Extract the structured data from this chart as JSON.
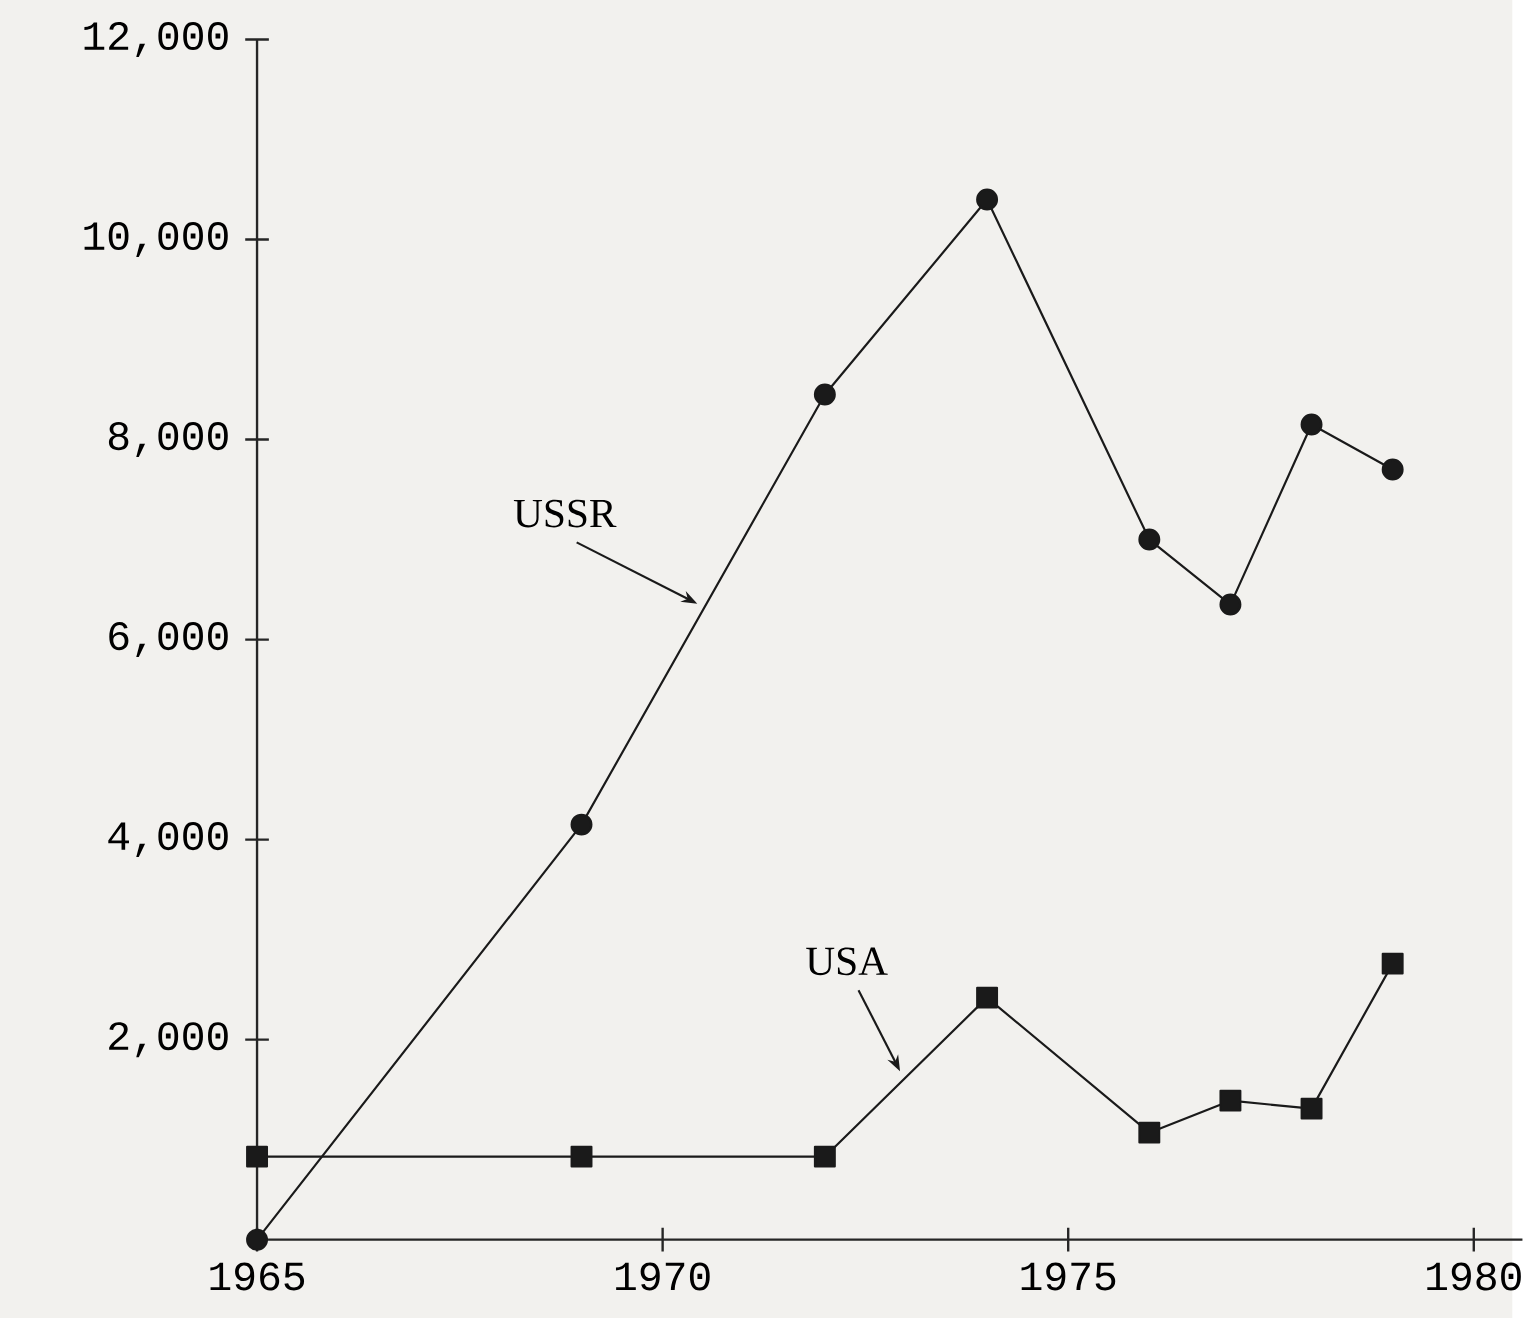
{
  "chart_data": {
    "type": "line",
    "x": [
      1965,
      1969,
      1972,
      1974,
      1976,
      1977,
      1978,
      1979
    ],
    "series": [
      {
        "name": "USSR",
        "color": "#1a1a1a",
        "marker": "circle",
        "values": [
          0,
          4150,
          8450,
          10400,
          7000,
          6350,
          8150,
          7700
        ]
      },
      {
        "name": "USA",
        "color": "#1a1a1a",
        "marker": "square",
        "values": [
          830,
          830,
          830,
          2420,
          1070,
          1390,
          1310,
          2760
        ]
      }
    ],
    "xlim": [
      1965,
      1980.6
    ],
    "xticks": [
      1965,
      1970,
      1975,
      1980
    ],
    "ylim": [
      0,
      12000
    ],
    "yticks": [
      {
        "value": 2000,
        "label": "2,000"
      },
      {
        "value": 4000,
        "label": "4,000"
      },
      {
        "value": 6000,
        "label": "6,000"
      },
      {
        "value": 8000,
        "label": "8,000"
      },
      {
        "value": 10000,
        "label": "10,000"
      },
      {
        "value": 12000,
        "label": "12,000"
      }
    ],
    "grid": false,
    "legend": false,
    "line_style": "solid"
  }
}
